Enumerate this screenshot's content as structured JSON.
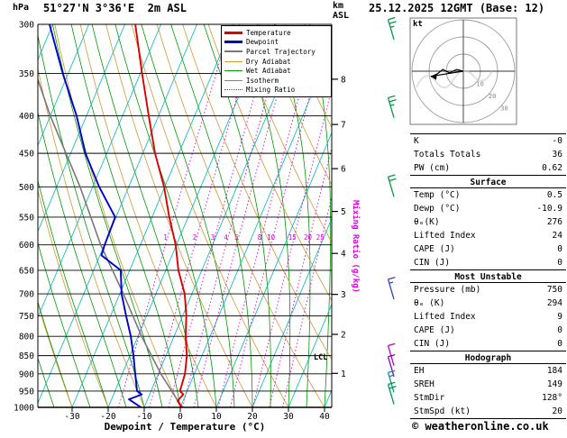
{
  "header": {
    "pressure_unit": "hPa",
    "station": "51°27'N 3°36'E  2m ASL",
    "km_label": "km",
    "asl_label": "ASL",
    "datetime": "25.12.2025 12GMT (Base: 12)"
  },
  "footer": {
    "copyright": "© weatheronline.co.uk"
  },
  "chart_data": {
    "type": "line",
    "chart_kind": "skew-t-log-p-sounding",
    "xlabel": "Dewpoint / Temperature (°C)",
    "x_unit": "°C",
    "x_ticks": [
      -30,
      -20,
      -10,
      0,
      10,
      20,
      30,
      40
    ],
    "pressure_unit": "hPa",
    "pressure_ticks": [
      300,
      350,
      400,
      450,
      500,
      550,
      600,
      650,
      700,
      750,
      800,
      850,
      900,
      950,
      1000
    ],
    "km_ticks": [
      1,
      2,
      3,
      4,
      5,
      6,
      7,
      8
    ],
    "lcl_label": "LCL",
    "mixing_ratio_axis_label": "Mixing Ratio (g/kg)",
    "mixing_ratio_values": [
      1,
      2,
      3,
      4,
      5,
      8,
      10,
      15,
      20,
      25
    ],
    "colors": {
      "temperature": "#dd0000",
      "dewpoint": "#0000cc",
      "parcel": "#787878",
      "dry_adiabat": "#cc9933",
      "wet_adiabat": "#009900",
      "isotherm": "#00b7b7",
      "mixing_ratio": "#dd00dd",
      "grid": "#000000"
    },
    "legend": [
      {
        "label": "Temperature",
        "color": "#dd0000",
        "style": "solid",
        "width": 3
      },
      {
        "label": "Dewpoint",
        "color": "#0000cc",
        "style": "solid",
        "width": 3
      },
      {
        "label": "Parcel Trajectory",
        "color": "#787878",
        "style": "solid",
        "width": 2
      },
      {
        "label": "Dry Adiabat",
        "color": "#cc9933",
        "style": "solid",
        "width": 1
      },
      {
        "label": "Wet Adiabat",
        "color": "#009900",
        "style": "solid",
        "width": 1
      },
      {
        "label": "Isotherm",
        "color": "#00b7b7",
        "style": "solid",
        "width": 1
      },
      {
        "label": "Mixing Ratio",
        "color": "#dd00dd",
        "style": "dotted",
        "width": 1
      }
    ],
    "series": [
      {
        "name": "Temperature",
        "color": "#dd0000",
        "points": [
          [
            1000,
            0.5
          ],
          [
            980,
            -1.5
          ],
          [
            960,
            -0.7
          ],
          [
            950,
            -2.0
          ],
          [
            900,
            -2.6
          ],
          [
            850,
            -4.2
          ],
          [
            800,
            -6.8
          ],
          [
            750,
            -9.0
          ],
          [
            700,
            -12.0
          ],
          [
            650,
            -16.5
          ],
          [
            600,
            -20.2
          ],
          [
            550,
            -25.2
          ],
          [
            500,
            -30.2
          ],
          [
            450,
            -36.6
          ],
          [
            400,
            -42.7
          ],
          [
            350,
            -49.5
          ],
          [
            300,
            -57.1
          ]
        ]
      },
      {
        "name": "Dewpoint",
        "color": "#0000cc",
        "points": [
          [
            1000,
            -10.9
          ],
          [
            975,
            -15.2
          ],
          [
            960,
            -12.2
          ],
          [
            950,
            -13.9
          ],
          [
            900,
            -16.4
          ],
          [
            850,
            -19.0
          ],
          [
            800,
            -22.0
          ],
          [
            750,
            -25.7
          ],
          [
            700,
            -29.5
          ],
          [
            650,
            -32.5
          ],
          [
            620,
            -39.6
          ],
          [
            600,
            -39.9
          ],
          [
            550,
            -40.2
          ],
          [
            500,
            -48.2
          ],
          [
            450,
            -55.9
          ],
          [
            400,
            -62.7
          ],
          [
            350,
            -71.5
          ],
          [
            300,
            -80.9
          ]
        ]
      },
      {
        "name": "Parcel Trajectory",
        "color": "#787878",
        "points": [
          [
            1000,
            0.5
          ],
          [
            900,
            -9.3
          ],
          [
            800,
            -19.0
          ],
          [
            700,
            -29.0
          ],
          [
            600,
            -41.0
          ],
          [
            500,
            -53.5
          ],
          [
            400,
            -70.0
          ],
          [
            350,
            -79.0
          ],
          [
            300,
            -88.0
          ]
        ]
      }
    ]
  },
  "wind_barbs": [
    {
      "pressure": 305,
      "color": "#009944",
      "speed_kt": 25
    },
    {
      "pressure": 390,
      "color": "#009944",
      "speed_kt": 25
    },
    {
      "pressure": 500,
      "color": "#009944",
      "speed_kt": 20
    },
    {
      "pressure": 690,
      "color": "#3344bb",
      "speed_kt": 15
    },
    {
      "pressure": 850,
      "color": "#bb00bb",
      "speed_kt": 10
    },
    {
      "pressure": 880,
      "color": "#8800bb",
      "speed_kt": 10
    },
    {
      "pressure": 925,
      "color": "#009999",
      "speed_kt": 15
    },
    {
      "pressure": 960,
      "color": "#009944",
      "speed_kt": 20
    }
  ],
  "hodograph": {
    "unit_label": "kt",
    "rings_kt": [
      10,
      20,
      30
    ],
    "storm_direction": "128°",
    "storm_speed_kt": 20,
    "trace_kt": [
      [
        0,
        0
      ],
      [
        -4,
        1
      ],
      [
        -8,
        -1
      ],
      [
        -12,
        1
      ],
      [
        -17,
        -3
      ],
      [
        -19,
        -3
      ]
    ]
  },
  "table": {
    "sections": [
      {
        "rows": [
          [
            "K",
            "-0"
          ],
          [
            "Totals Totals",
            "36"
          ],
          [
            "PW (cm)",
            "0.62"
          ]
        ]
      },
      {
        "header": "Surface",
        "rows": [
          [
            "Temp (°C)",
            "0.5"
          ],
          [
            "Dewp (°C)",
            "-10.9"
          ],
          [
            "θₑ(K)",
            "276"
          ],
          [
            "Lifted Index",
            "24"
          ],
          [
            "CAPE (J)",
            "0"
          ],
          [
            "CIN (J)",
            "0"
          ]
        ]
      },
      {
        "header": "Most Unstable",
        "rows": [
          [
            "Pressure (mb)",
            "750"
          ],
          [
            "θₑ (K)",
            "294"
          ],
          [
            "Lifted Index",
            "9"
          ],
          [
            "CAPE (J)",
            "0"
          ],
          [
            "CIN (J)",
            "0"
          ]
        ]
      },
      {
        "header": "Hodograph",
        "rows": [
          [
            "EH",
            "184"
          ],
          [
            "SREH",
            "149"
          ],
          [
            "StmDir",
            "128°"
          ],
          [
            "StmSpd (kt)",
            "20"
          ]
        ]
      }
    ]
  }
}
